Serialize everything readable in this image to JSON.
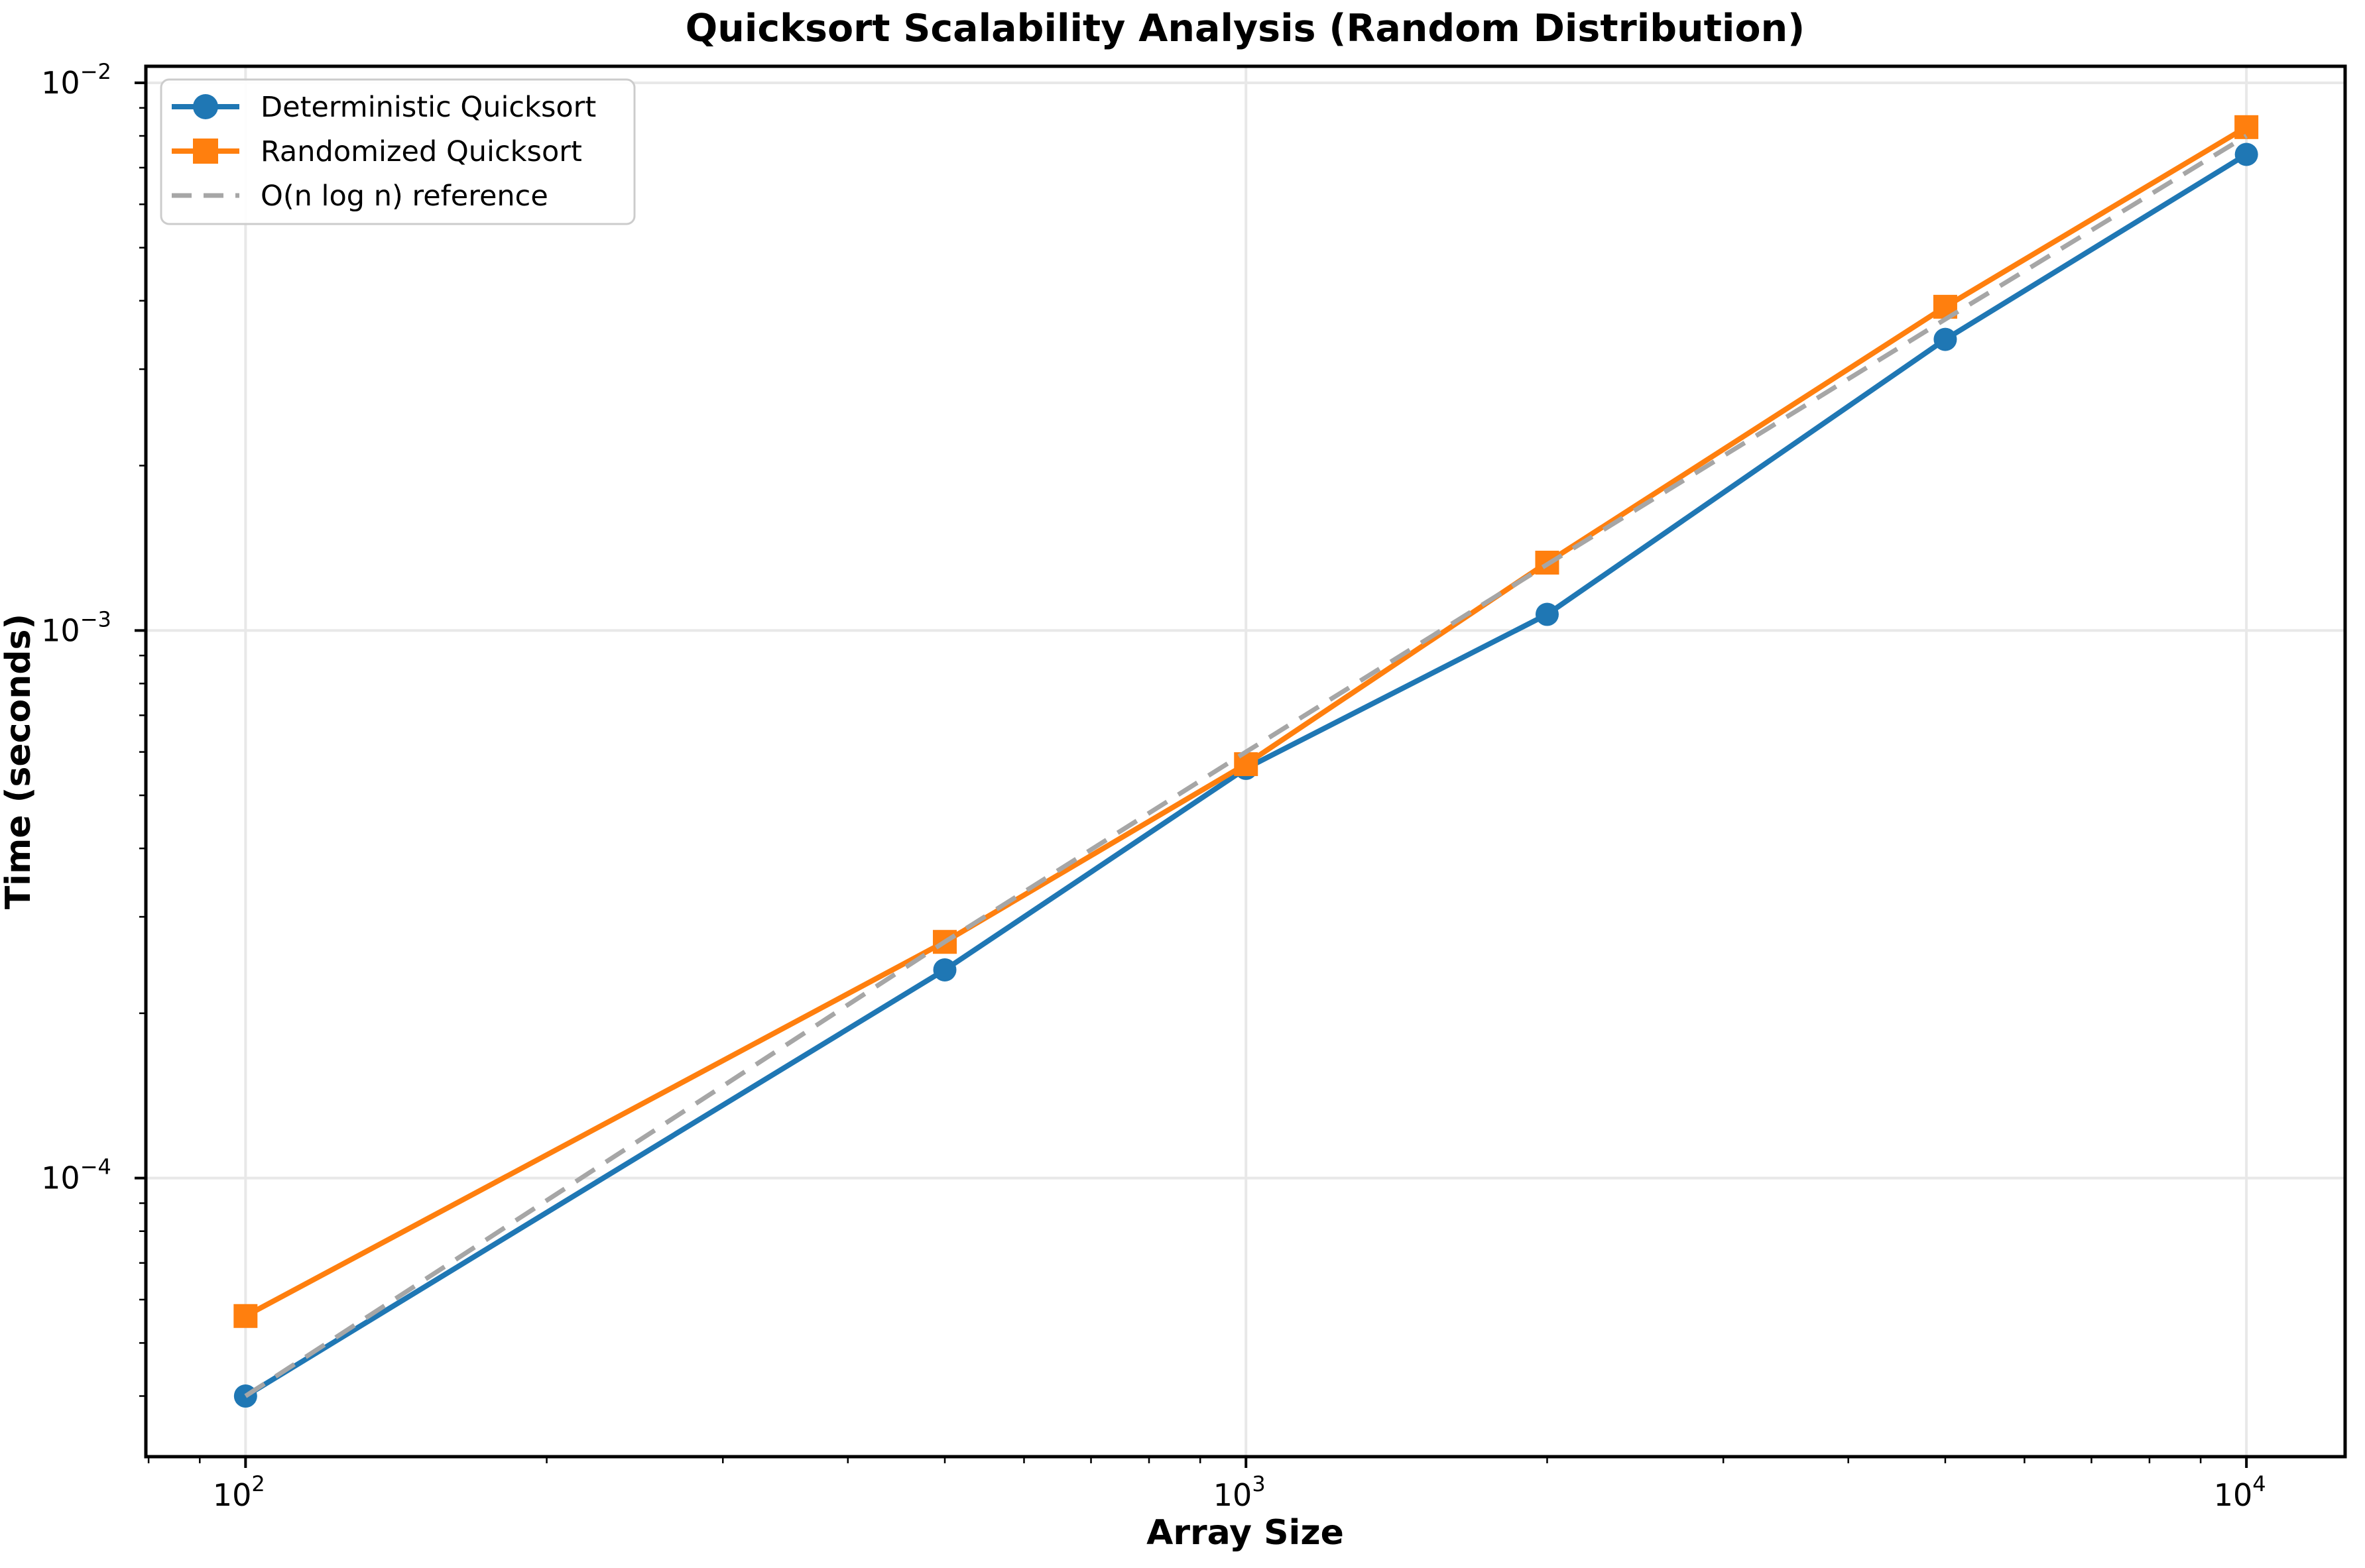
{
  "chart_data": {
    "type": "line",
    "title": "Quicksort Scalability Analysis (Random Distribution)",
    "xlabel": "Array Size",
    "ylabel": "Time (seconds)",
    "x_scale": "log",
    "y_scale": "log",
    "xlim": [
      79.5,
      12550
    ],
    "ylim": [
      3.1e-05,
      0.01072
    ],
    "x_major_tick_exponents": [
      2,
      3,
      4
    ],
    "y_major_tick_exponents": [
      -2,
      -3,
      -4
    ],
    "grid": true,
    "legend_position": "upper left",
    "x": [
      100,
      500,
      1000,
      2000,
      5000,
      10000
    ],
    "series": [
      {
        "name": "Deterministic Quicksort",
        "color": "#1f77b4",
        "marker": "circle",
        "linestyle": "solid",
        "values": [
          4e-05,
          0.00024,
          0.00056,
          0.00107,
          0.0034,
          0.0074
        ]
      },
      {
        "name": "Randomized Quicksort",
        "color": "#ff7f0e",
        "marker": "square",
        "linestyle": "solid",
        "values": [
          5.6e-05,
          0.00027,
          0.00057,
          0.00133,
          0.0039,
          0.0083
        ]
      },
      {
        "name": "O(n log n) reference",
        "color": "#a6a6a6",
        "marker": "none",
        "linestyle": "dashed",
        "values": [
          4e-05,
          0.00027,
          0.0006,
          0.00132,
          0.0037,
          0.008
        ]
      }
    ],
    "colors": {
      "grid": "#e8e8e8",
      "spine": "#000000",
      "legend_border": "#cccccc",
      "legend_background": "#ffffff"
    }
  }
}
